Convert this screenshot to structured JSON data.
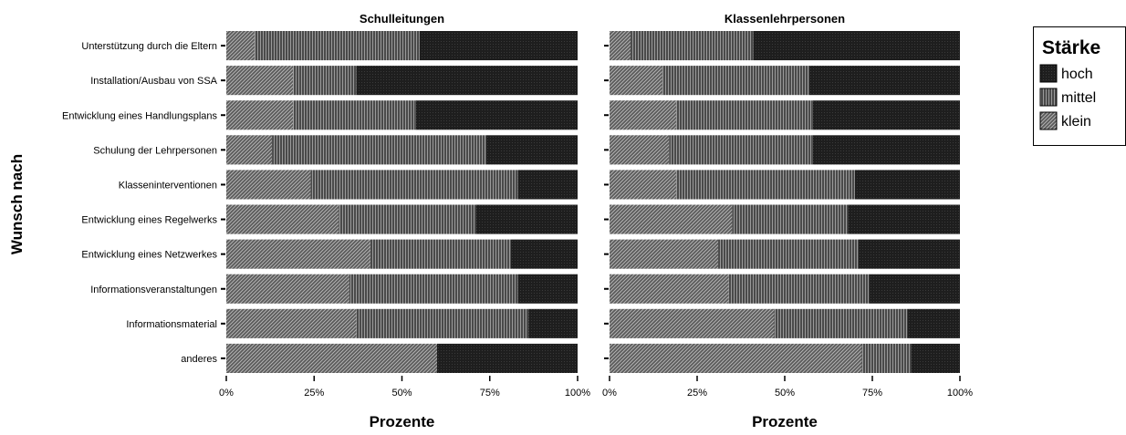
{
  "chart_data": {
    "type": "bar",
    "orientation": "horizontal",
    "stacked": true,
    "percent_axis": true,
    "ylabel": "Wunsch nach",
    "xlabel": "Prozente",
    "xlim": [
      0,
      100
    ],
    "xticks": [
      "0%",
      "25%",
      "50%",
      "75%",
      "100%"
    ],
    "grid": false,
    "legend": {
      "title": "Stärke",
      "placement": "right",
      "entries": [
        "hoch",
        "mittel",
        "klein"
      ]
    },
    "categories": [
      "Unterstützung durch die Eltern",
      "Installation/Ausbau von SSA",
      "Entwicklung eines Handlungsplans ",
      "Schulung der Lehrpersonen",
      "Klasseninterventionen",
      "Entwicklung eines Regelwerks",
      "Entwicklung eines Netzwerkes",
      "Informationsveranstaltungen",
      "Informationsmaterial",
      "anderes"
    ],
    "panels": [
      {
        "title": "Schulleitungen",
        "series": [
          {
            "name": "klein",
            "values": [
              8,
              19,
              19,
              13,
              24,
              32,
              41,
              35,
              37,
              60
            ]
          },
          {
            "name": "mittel",
            "values": [
              47,
              18,
              35,
              61,
              59,
              39,
              40,
              48,
              49,
              0
            ]
          },
          {
            "name": "hoch",
            "values": [
              45,
              63,
              46,
              26,
              17,
              29,
              19,
              17,
              14,
              40
            ]
          }
        ]
      },
      {
        "title": "Klassenlehrpersonen",
        "series": [
          {
            "name": "klein",
            "values": [
              6,
              15,
              19,
              17,
              19,
              35,
              31,
              34,
              47,
              72
            ]
          },
          {
            "name": "mittel",
            "values": [
              35,
              42,
              39,
              41,
              51,
              33,
              40,
              40,
              38,
              14
            ]
          },
          {
            "name": "hoch",
            "values": [
              59,
              43,
              42,
              42,
              30,
              32,
              29,
              26,
              15,
              14
            ]
          }
        ]
      }
    ]
  }
}
